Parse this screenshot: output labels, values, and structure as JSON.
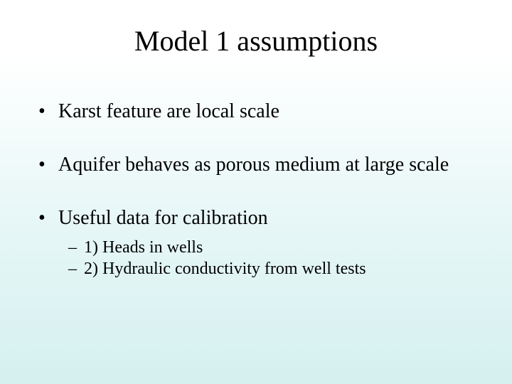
{
  "background": {
    "top_color": "#ffffff",
    "bottom_color": "#d5f0f0"
  },
  "title": {
    "text": "Model 1 assumptions",
    "font_size_pt": 40,
    "font_family": "Times New Roman",
    "color": "#000000"
  },
  "body": {
    "font_family": "Times New Roman",
    "color": "#000000",
    "bullets": [
      {
        "level": 1,
        "marker": "•",
        "text": "Karst feature are local scale",
        "font_size_pt": 28
      },
      {
        "level": 1,
        "marker": "•",
        "text": "Aquifer behaves as porous medium at large scale",
        "font_size_pt": 28
      },
      {
        "level": 1,
        "marker": "•",
        "text": "Useful data for calibration",
        "font_size_pt": 28
      },
      {
        "level": 2,
        "marker": "–",
        "text": "1) Heads in wells",
        "font_size_pt": 24
      },
      {
        "level": 2,
        "marker": "–",
        "text": "2) Hydraulic conductivity from well tests",
        "font_size_pt": 24
      }
    ]
  }
}
